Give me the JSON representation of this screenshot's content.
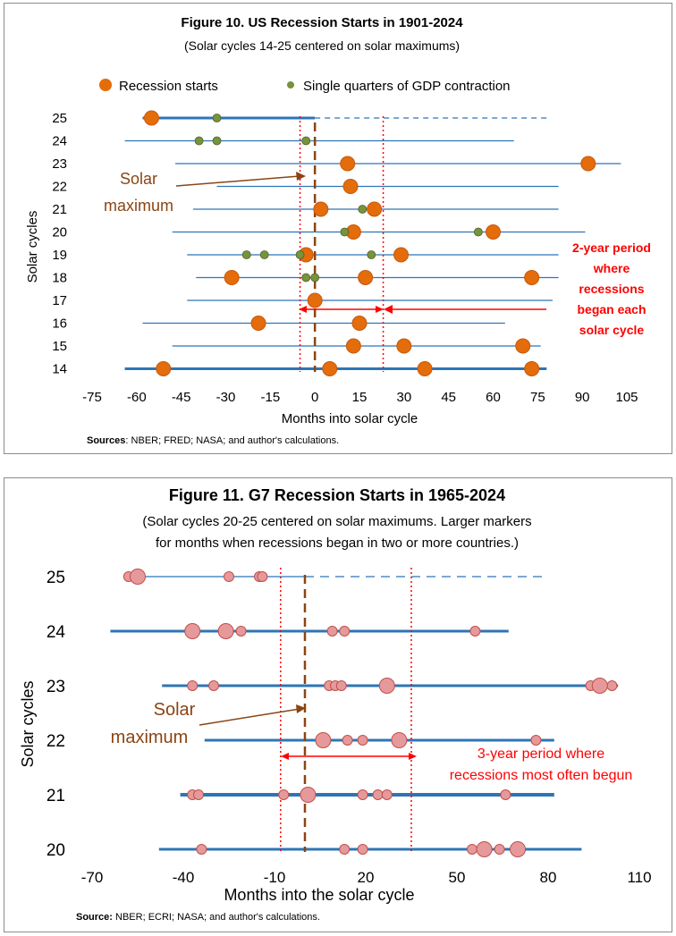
{
  "chart_data": [
    {
      "type": "scatter",
      "title": "Figure 10. US Recession Starts in 1901-2024",
      "subtitle": "(Solar cycles 14-25 centered on solar maximums)",
      "xlabel": "Months into solar cycle",
      "ylabel": "Solar cycles",
      "xlim": [
        -75,
        110
      ],
      "x_ticks": [
        -75,
        -60,
        -45,
        -30,
        -15,
        0,
        15,
        30,
        45,
        60,
        75,
        90,
        105
      ],
      "cycles": [
        25,
        24,
        23,
        22,
        21,
        20,
        19,
        18,
        17,
        16,
        15,
        14
      ],
      "legend": [
        {
          "name": "Recession starts",
          "color": "#e46c0a"
        },
        {
          "name": "Single quarters of GDP contraction",
          "color": "#77933c"
        }
      ],
      "cycle_ranges": [
        {
          "cycle": 25,
          "start": -58,
          "end": 0,
          "dashed_end": 78
        },
        {
          "cycle": 24,
          "start": -64,
          "end": 67
        },
        {
          "cycle": 23,
          "start": -47,
          "end": 103
        },
        {
          "cycle": 22,
          "start": -33,
          "end": 82
        },
        {
          "cycle": 21,
          "start": -41,
          "end": 82
        },
        {
          "cycle": 20,
          "start": -48,
          "end": 91
        },
        {
          "cycle": 19,
          "start": -43,
          "end": 82
        },
        {
          "cycle": 18,
          "start": -40,
          "end": 82
        },
        {
          "cycle": 17,
          "start": -43,
          "end": 80
        },
        {
          "cycle": 16,
          "start": -58,
          "end": 64
        },
        {
          "cycle": 15,
          "start": -48,
          "end": 76
        },
        {
          "cycle": 14,
          "start": -64,
          "end": 78
        }
      ],
      "recession_starts": [
        {
          "cycle": 25,
          "months": [
            -55
          ]
        },
        {
          "cycle": 23,
          "months": [
            11,
            92
          ]
        },
        {
          "cycle": 22,
          "months": [
            12
          ]
        },
        {
          "cycle": 21,
          "months": [
            2,
            20
          ]
        },
        {
          "cycle": 20,
          "months": [
            13,
            60
          ]
        },
        {
          "cycle": 19,
          "months": [
            -3,
            29
          ]
        },
        {
          "cycle": 18,
          "months": [
            -28,
            17,
            73
          ]
        },
        {
          "cycle": 17,
          "months": [
            0
          ]
        },
        {
          "cycle": 16,
          "months": [
            -19,
            15
          ]
        },
        {
          "cycle": 15,
          "months": [
            13,
            30,
            70
          ]
        },
        {
          "cycle": 14,
          "months": [
            -51,
            5,
            37,
            73
          ]
        }
      ],
      "gdp_contractions": [
        {
          "cycle": 25,
          "months": [
            -33
          ]
        },
        {
          "cycle": 24,
          "months": [
            -39,
            -33,
            -3
          ]
        },
        {
          "cycle": 21,
          "months": [
            16
          ]
        },
        {
          "cycle": 20,
          "months": [
            10,
            55
          ]
        },
        {
          "cycle": 19,
          "months": [
            -23,
            -17,
            -5,
            19
          ]
        },
        {
          "cycle": 18,
          "months": [
            -3,
            0
          ]
        }
      ],
      "vertical_lines": {
        "solar_maximum": 0,
        "period_start": -5,
        "period_end": 23
      },
      "annotations": {
        "solar_max_label": [
          "Solar",
          "maximum"
        ],
        "period_label": [
          "2-year period",
          "where",
          "recessions",
          "began each",
          "solar cycle"
        ]
      },
      "source": {
        "bold": "Sources",
        "text": ": NBER; FRED; NASA; and author's calculations."
      }
    },
    {
      "type": "scatter",
      "title": "Figure 11. G7 Recession Starts in 1965-2024",
      "subtitle_lines": [
        "(Solar cycles 20-25 centered on solar maximums. Larger markers",
        "for months when recessions began in two or more countries.)"
      ],
      "xlabel": "Months into the solar cycle",
      "ylabel": "Solar cycles",
      "xlim": [
        -70,
        110
      ],
      "x_ticks": [
        -70,
        -40,
        -10,
        20,
        50,
        80,
        110
      ],
      "cycles": [
        25,
        24,
        23,
        22,
        21,
        20
      ],
      "cycle_ranges": [
        {
          "cycle": 25,
          "start": -57,
          "end": 0,
          "dashed_end": 78
        },
        {
          "cycle": 24,
          "start": -64,
          "end": 67
        },
        {
          "cycle": 23,
          "start": -47,
          "end": 103
        },
        {
          "cycle": 22,
          "start": -33,
          "end": 82
        },
        {
          "cycle": 21,
          "start": -41,
          "end": 82
        },
        {
          "cycle": 20,
          "start": -48,
          "end": 91
        }
      ],
      "recession_starts": [
        {
          "cycle": 25,
          "small": [
            -58,
            -25,
            -15,
            -14
          ],
          "large": [
            -55
          ]
        },
        {
          "cycle": 24,
          "small": [
            -21,
            9,
            13,
            56
          ],
          "large": [
            -37,
            -26
          ]
        },
        {
          "cycle": 23,
          "small": [
            -37,
            -30,
            8,
            10,
            12,
            94,
            101
          ],
          "large": [
            27,
            97
          ]
        },
        {
          "cycle": 22,
          "small": [
            14,
            19,
            76
          ],
          "large": [
            6,
            31
          ]
        },
        {
          "cycle": 21,
          "small": [
            -37,
            -35,
            -7,
            19,
            24,
            27,
            66
          ],
          "large": [
            1
          ]
        },
        {
          "cycle": 20,
          "small": [
            -34,
            13,
            19,
            55,
            64
          ],
          "large": [
            59,
            70
          ]
        }
      ],
      "vertical_lines": {
        "solar_maximum": 0,
        "period_start": -8,
        "period_end": 35
      },
      "annotations": {
        "solar_max_label": [
          "Solar",
          "maximum"
        ],
        "period_label": [
          "3-year period where",
          "recessions most often begun"
        ]
      },
      "source": {
        "bold": "Source:",
        "text": "  NBER; ECRI; NASA; and author's calculations."
      }
    }
  ]
}
